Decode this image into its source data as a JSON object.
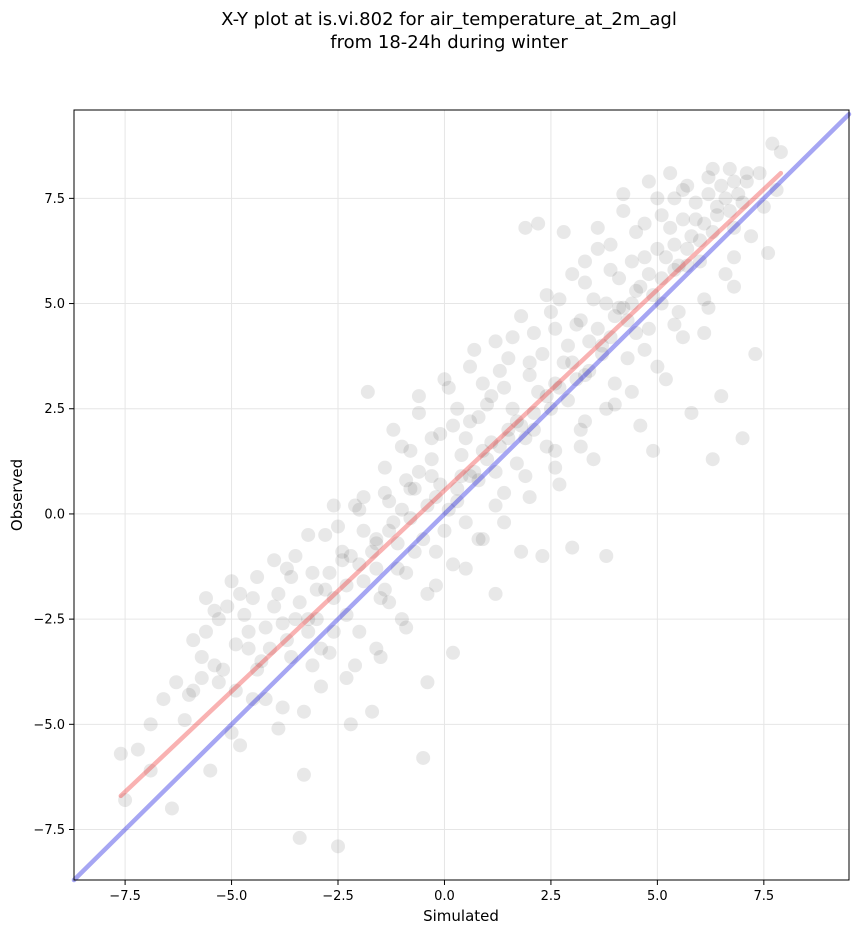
{
  "chart_data": {
    "type": "scatter",
    "title_line1": "X-Y plot at is.vi.802 for air_temperature_at_2m_agl",
    "title_line2": "from 18-24h during winter",
    "xlabel": "Simulated",
    "ylabel": "Observed",
    "xlim": [
      -8.7,
      9.5
    ],
    "ylim": [
      -8.7,
      9.6
    ],
    "xticks": [
      -7.5,
      -5.0,
      -2.5,
      0.0,
      2.5,
      5.0,
      7.5
    ],
    "xtick_labels": [
      "−7.5",
      "−5.0",
      "−2.5",
      "0.0",
      "2.5",
      "5.0",
      "7.5"
    ],
    "yticks": [
      -7.5,
      -5.0,
      -2.5,
      0.0,
      2.5,
      5.0,
      7.5
    ],
    "ytick_labels": [
      "−7.5",
      "−5.0",
      "−2.5",
      "0.0",
      "2.5",
      "5.0",
      "7.5"
    ],
    "grid": true,
    "point_color": "#000000",
    "point_alpha": 0.09,
    "identity_line": {
      "x": [
        -8.7,
        9.5
      ],
      "y": [
        -8.7,
        9.5
      ],
      "color": "#0000dd"
    },
    "regression_line": {
      "x": [
        -7.6,
        7.9
      ],
      "y": [
        -6.7,
        8.1
      ],
      "color": "#ee2222"
    },
    "points": [
      [
        -7.6,
        -5.7
      ],
      [
        -7.5,
        -6.8
      ],
      [
        -6.9,
        -5.0
      ],
      [
        -6.9,
        -6.1
      ],
      [
        -6.4,
        -7.0
      ],
      [
        -6.0,
        -4.3
      ],
      [
        -5.9,
        -4.2
      ],
      [
        -5.7,
        -3.4
      ],
      [
        -5.6,
        -2.8
      ],
      [
        -5.5,
        -6.1
      ],
      [
        -5.4,
        -2.3
      ],
      [
        -5.3,
        -4.0
      ],
      [
        -5.2,
        -3.7
      ],
      [
        -5.1,
        -2.2
      ],
      [
        -5.0,
        -1.6
      ],
      [
        -4.9,
        -4.2
      ],
      [
        -4.8,
        -5.5
      ],
      [
        -4.7,
        -2.4
      ],
      [
        -4.6,
        -3.2
      ],
      [
        -4.5,
        -2.0
      ],
      [
        -4.4,
        -1.5
      ],
      [
        -4.3,
        -3.5
      ],
      [
        -4.2,
        -4.4
      ],
      [
        -4.0,
        -2.2
      ],
      [
        -3.9,
        -5.1
      ],
      [
        -3.8,
        -4.6
      ],
      [
        -3.7,
        -1.3
      ],
      [
        -3.6,
        -3.4
      ],
      [
        -3.5,
        -1.0
      ],
      [
        -3.4,
        -7.7
      ],
      [
        -3.3,
        -6.2
      ],
      [
        -3.3,
        -4.7
      ],
      [
        -3.2,
        -2.5
      ],
      [
        -3.1,
        -3.6
      ],
      [
        -3.0,
        -1.8
      ],
      [
        -2.9,
        -4.1
      ],
      [
        -2.8,
        -0.5
      ],
      [
        -2.7,
        -3.3
      ],
      [
        -2.6,
        -2.0
      ],
      [
        -2.5,
        -7.9
      ],
      [
        -2.4,
        -1.1
      ],
      [
        -2.3,
        -3.9
      ],
      [
        -2.2,
        -5.0
      ],
      [
        -2.1,
        0.2
      ],
      [
        -2.0,
        -2.8
      ],
      [
        -1.9,
        -1.6
      ],
      [
        -1.8,
        2.9
      ],
      [
        -1.7,
        -4.7
      ],
      [
        -1.6,
        -0.6
      ],
      [
        -1.5,
        -3.4
      ],
      [
        -1.4,
        1.1
      ],
      [
        -1.3,
        -2.1
      ],
      [
        -1.2,
        -0.2
      ],
      [
        -1.1,
        -1.3
      ],
      [
        -1.0,
        1.6
      ],
      [
        -0.9,
        -2.7
      ],
      [
        -0.8,
        0.6
      ],
      [
        -0.7,
        -0.9
      ],
      [
        -0.6,
        2.4
      ],
      [
        -0.5,
        -5.8
      ],
      [
        -0.4,
        -4.0
      ],
      [
        -0.3,
        0.9
      ],
      [
        -0.2,
        -1.7
      ],
      [
        -0.1,
        1.9
      ],
      [
        0.0,
        -0.4
      ],
      [
        0.1,
        3.0
      ],
      [
        0.2,
        -3.3
      ],
      [
        0.3,
        0.3
      ],
      [
        0.4,
        1.4
      ],
      [
        0.5,
        -1.3
      ],
      [
        0.6,
        2.2
      ],
      [
        0.7,
        3.9
      ],
      [
        0.8,
        0.8
      ],
      [
        0.9,
        -0.6
      ],
      [
        1.0,
        2.6
      ],
      [
        1.1,
        1.7
      ],
      [
        1.2,
        -1.9
      ],
      [
        1.3,
        3.4
      ],
      [
        1.4,
        0.5
      ],
      [
        1.5,
        2.0
      ],
      [
        1.6,
        4.2
      ],
      [
        1.7,
        1.2
      ],
      [
        1.8,
        -0.9
      ],
      [
        1.9,
        6.8
      ],
      [
        2.0,
        3.6
      ],
      [
        2.1,
        2.4
      ],
      [
        2.2,
        6.9
      ],
      [
        2.3,
        -1.0
      ],
      [
        2.4,
        1.6
      ],
      [
        2.5,
        4.8
      ],
      [
        2.6,
        3.1
      ],
      [
        2.7,
        0.7
      ],
      [
        2.8,
        6.7
      ],
      [
        2.9,
        2.7
      ],
      [
        3.0,
        -0.8
      ],
      [
        3.1,
        4.5
      ],
      [
        3.2,
        2.0
      ],
      [
        3.3,
        5.5
      ],
      [
        3.4,
        3.4
      ],
      [
        3.5,
        1.3
      ],
      [
        3.6,
        6.3
      ],
      [
        3.7,
        4.0
      ],
      [
        3.8,
        -1.0
      ],
      [
        3.9,
        5.8
      ],
      [
        4.0,
        2.6
      ],
      [
        4.1,
        4.9
      ],
      [
        4.2,
        7.2
      ],
      [
        4.3,
        3.7
      ],
      [
        4.4,
        6.0
      ],
      [
        4.5,
        5.3
      ],
      [
        4.6,
        2.1
      ],
      [
        4.7,
        6.9
      ],
      [
        4.8,
        4.4
      ],
      [
        4.9,
        1.5
      ],
      [
        5.0,
        7.5
      ],
      [
        5.1,
        5.6
      ],
      [
        5.2,
        3.2
      ],
      [
        5.3,
        8.1
      ],
      [
        5.4,
        6.4
      ],
      [
        5.5,
        4.8
      ],
      [
        5.6,
        7.7
      ],
      [
        5.7,
        5.9
      ],
      [
        5.8,
        2.4
      ],
      [
        5.9,
        7.0
      ],
      [
        6.0,
        6.5
      ],
      [
        6.1,
        4.3
      ],
      [
        6.2,
        8.0
      ],
      [
        6.3,
        1.3
      ],
      [
        6.4,
        7.3
      ],
      [
        6.5,
        2.8
      ],
      [
        6.6,
        5.7
      ],
      [
        6.7,
        8.2
      ],
      [
        6.8,
        6.8
      ],
      [
        6.9,
        7.6
      ],
      [
        7.0,
        1.8
      ],
      [
        7.1,
        7.9
      ],
      [
        7.2,
        6.6
      ],
      [
        7.3,
        3.8
      ],
      [
        7.4,
        8.1
      ],
      [
        7.5,
        7.3
      ],
      [
        7.6,
        6.2
      ],
      [
        7.7,
        8.8
      ],
      [
        7.8,
        7.7
      ],
      [
        7.9,
        8.6
      ],
      [
        -3.6,
        -1.5
      ],
      [
        -3.2,
        -2.8
      ],
      [
        -2.9,
        -3.2
      ],
      [
        -2.6,
        -2.8
      ],
      [
        -2.3,
        -1.7
      ],
      [
        -2.0,
        -1.2
      ],
      [
        -1.7,
        -0.9
      ],
      [
        -1.4,
        -1.8
      ],
      [
        -1.1,
        -0.7
      ],
      [
        -0.8,
        -0.1
      ],
      [
        -0.5,
        -0.6
      ],
      [
        -0.2,
        0.4
      ],
      [
        0.1,
        0.1
      ],
      [
        0.4,
        0.9
      ],
      [
        0.7,
        1.0
      ],
      [
        1.0,
        1.3
      ],
      [
        1.3,
        1.6
      ],
      [
        1.6,
        2.5
      ],
      [
        1.9,
        1.8
      ],
      [
        2.2,
        2.9
      ],
      [
        2.5,
        2.5
      ],
      [
        2.8,
        3.6
      ],
      [
        3.1,
        3.2
      ],
      [
        3.4,
        4.1
      ],
      [
        3.7,
        3.8
      ],
      [
        4.0,
        4.7
      ],
      [
        4.3,
        4.6
      ],
      [
        4.6,
        5.4
      ],
      [
        4.9,
        5.2
      ],
      [
        5.2,
        6.1
      ],
      [
        5.5,
        5.9
      ],
      [
        5.8,
        6.6
      ],
      [
        6.1,
        6.9
      ],
      [
        6.4,
        7.1
      ],
      [
        6.7,
        7.2
      ],
      [
        7.0,
        7.4
      ],
      [
        -4.6,
        -2.8
      ],
      [
        -4.1,
        -3.2
      ],
      [
        -3.8,
        -2.6
      ],
      [
        -3.4,
        -2.1
      ],
      [
        -2.7,
        -1.4
      ],
      [
        -2.4,
        -0.9
      ],
      [
        -1.9,
        -0.4
      ],
      [
        -1.6,
        -0.7
      ],
      [
        -1.3,
        0.3
      ],
      [
        -0.9,
        0.8
      ],
      [
        -0.6,
        1.0
      ],
      [
        -0.3,
        1.3
      ],
      [
        0.2,
        2.1
      ],
      [
        0.5,
        1.8
      ],
      [
        0.8,
        2.3
      ],
      [
        1.1,
        2.8
      ],
      [
        1.4,
        3.0
      ],
      [
        1.7,
        2.2
      ],
      [
        2.0,
        3.3
      ],
      [
        2.3,
        3.8
      ],
      [
        2.6,
        4.4
      ],
      [
        2.9,
        4.0
      ],
      [
        3.2,
        4.6
      ],
      [
        3.5,
        5.1
      ],
      [
        3.8,
        5.0
      ],
      [
        4.1,
        5.6
      ],
      [
        4.4,
        5.0
      ],
      [
        4.7,
        6.1
      ],
      [
        5.0,
        6.3
      ],
      [
        5.3,
        6.8
      ],
      [
        5.6,
        7.0
      ],
      [
        5.9,
        7.4
      ],
      [
        6.2,
        7.6
      ],
      [
        6.5,
        7.8
      ],
      [
        6.8,
        7.9
      ],
      [
        7.1,
        8.1
      ],
      [
        -5.9,
        -3.0
      ],
      [
        -5.3,
        -2.5
      ],
      [
        -4.9,
        -3.1
      ],
      [
        -4.5,
        -4.4
      ],
      [
        -4.2,
        -2.7
      ],
      [
        -3.9,
        -1.9
      ],
      [
        -3.5,
        -2.5
      ],
      [
        -3.1,
        -1.4
      ],
      [
        -2.8,
        -1.8
      ],
      [
        -2.5,
        -0.3
      ],
      [
        -2.2,
        -1.0
      ],
      [
        -1.9,
        0.4
      ],
      [
        -1.6,
        -1.3
      ],
      [
        -1.3,
        -0.4
      ],
      [
        -1.0,
        0.1
      ],
      [
        -0.7,
        0.6
      ],
      [
        -0.4,
        0.2
      ],
      [
        -0.1,
        0.7
      ],
      [
        0.3,
        0.6
      ],
      [
        0.6,
        0.9
      ],
      [
        0.9,
        1.5
      ],
      [
        1.2,
        1.0
      ],
      [
        1.5,
        1.8
      ],
      [
        1.8,
        2.1
      ],
      [
        2.1,
        2.0
      ],
      [
        2.4,
        2.8
      ],
      [
        2.7,
        3.0
      ],
      [
        3.0,
        3.6
      ],
      [
        3.3,
        3.3
      ],
      [
        3.6,
        4.4
      ],
      [
        3.9,
        4.2
      ],
      [
        4.2,
        4.9
      ],
      [
        4.5,
        4.3
      ],
      [
        4.8,
        5.7
      ],
      [
        5.1,
        5.0
      ],
      [
        5.4,
        5.8
      ],
      [
        5.7,
        6.3
      ],
      [
        6.0,
        6.0
      ],
      [
        6.3,
        6.7
      ],
      [
        6.6,
        7.5
      ],
      [
        -6.3,
        -4.0
      ],
      [
        -5.7,
        -3.9
      ],
      [
        -5.0,
        -5.2
      ],
      [
        -4.4,
        -3.7
      ],
      [
        -3.7,
        -3.0
      ],
      [
        -3.0,
        -2.5
      ],
      [
        -2.3,
        -2.4
      ],
      [
        -1.5,
        -2.0
      ],
      [
        -0.9,
        -1.4
      ],
      [
        -0.2,
        -0.9
      ],
      [
        0.5,
        -0.2
      ],
      [
        1.2,
        0.2
      ],
      [
        1.9,
        0.9
      ],
      [
        2.6,
        1.5
      ],
      [
        3.3,
        2.2
      ],
      [
        4.0,
        3.1
      ],
      [
        4.7,
        3.9
      ],
      [
        5.4,
        4.5
      ],
      [
        6.1,
        5.1
      ],
      [
        6.8,
        6.1
      ],
      [
        -1.2,
        2.0
      ],
      [
        -0.6,
        2.8
      ],
      [
        0.0,
        3.2
      ],
      [
        0.6,
        3.5
      ],
      [
        1.2,
        4.1
      ],
      [
        1.8,
        4.7
      ],
      [
        2.4,
        5.2
      ],
      [
        3.0,
        5.7
      ],
      [
        3.6,
        6.8
      ],
      [
        4.2,
        7.6
      ],
      [
        4.8,
        7.9
      ],
      [
        5.4,
        7.5
      ],
      [
        -5.6,
        -2.0
      ],
      [
        -4.8,
        -1.9
      ],
      [
        -4.0,
        -1.1
      ],
      [
        -3.2,
        -0.5
      ],
      [
        -2.6,
        0.2
      ],
      [
        -2.0,
        0.1
      ],
      [
        -1.4,
        0.5
      ],
      [
        -0.8,
        1.5
      ],
      [
        -0.3,
        1.8
      ],
      [
        0.3,
        2.5
      ],
      [
        0.9,
        3.1
      ],
      [
        1.5,
        3.7
      ],
      [
        2.1,
        4.3
      ],
      [
        2.7,
        5.1
      ],
      [
        3.3,
        6.0
      ],
      [
        3.9,
        6.4
      ],
      [
        4.5,
        6.7
      ],
      [
        5.1,
        7.1
      ],
      [
        5.7,
        7.8
      ],
      [
        6.3,
        8.2
      ],
      [
        -2.1,
        -3.6
      ],
      [
        -1.6,
        -3.2
      ],
      [
        -1.0,
        -2.5
      ],
      [
        -0.4,
        -1.9
      ],
      [
        0.2,
        -1.2
      ],
      [
        0.8,
        -0.6
      ],
      [
        1.4,
        -0.2
      ],
      [
        2.0,
        0.4
      ],
      [
        2.6,
        1.1
      ],
      [
        3.2,
        1.6
      ],
      [
        3.8,
        2.5
      ],
      [
        4.4,
        2.9
      ],
      [
        5.0,
        3.5
      ],
      [
        5.6,
        4.2
      ],
      [
        6.2,
        4.9
      ],
      [
        6.8,
        5.4
      ],
      [
        -7.2,
        -5.6
      ],
      [
        -6.6,
        -4.4
      ],
      [
        -6.1,
        -4.9
      ],
      [
        -5.4,
        -3.6
      ]
    ]
  }
}
